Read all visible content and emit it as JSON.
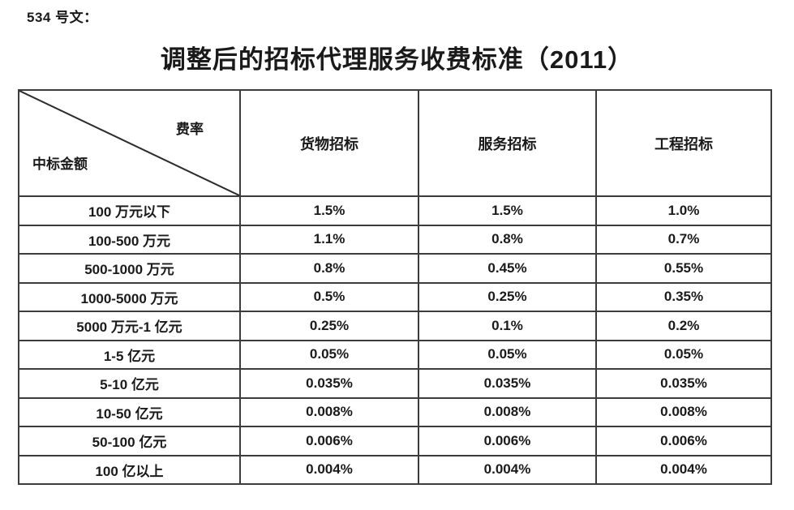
{
  "page": {
    "doc_label": "534 号文：",
    "title": "调整后的招标代理服务收费标准（2011）"
  },
  "table": {
    "corner": {
      "top_right": "费率",
      "bottom_left": "中标金额"
    },
    "columns": [
      "货物招标",
      "服务招标",
      "工程招标"
    ],
    "rows": [
      {
        "label": "100 万元以下",
        "values": [
          "1.5%",
          "1.5%",
          "1.0%"
        ]
      },
      {
        "label": "100-500 万元",
        "values": [
          "1.1%",
          "0.8%",
          "0.7%"
        ]
      },
      {
        "label": "500-1000 万元",
        "values": [
          "0.8%",
          "0.45%",
          "0.55%"
        ]
      },
      {
        "label": "1000-5000 万元",
        "values": [
          "0.5%",
          "0.25%",
          "0.35%"
        ]
      },
      {
        "label": "5000 万元-1 亿元",
        "values": [
          "0.25%",
          "0.1%",
          "0.2%"
        ]
      },
      {
        "label": "1-5 亿元",
        "values": [
          "0.05%",
          "0.05%",
          "0.05%"
        ]
      },
      {
        "label": "5-10 亿元",
        "values": [
          "0.035%",
          "0.035%",
          "0.035%"
        ]
      },
      {
        "label": "10-50 亿元",
        "values": [
          "0.008%",
          "0.008%",
          "0.008%"
        ]
      },
      {
        "label": "50-100 亿元",
        "values": [
          "0.006%",
          "0.006%",
          "0.006%"
        ]
      },
      {
        "label": "100 亿以上",
        "values": [
          "0.004%",
          "0.004%",
          "0.004%"
        ]
      }
    ],
    "border_color": "#3c3c3c"
  }
}
